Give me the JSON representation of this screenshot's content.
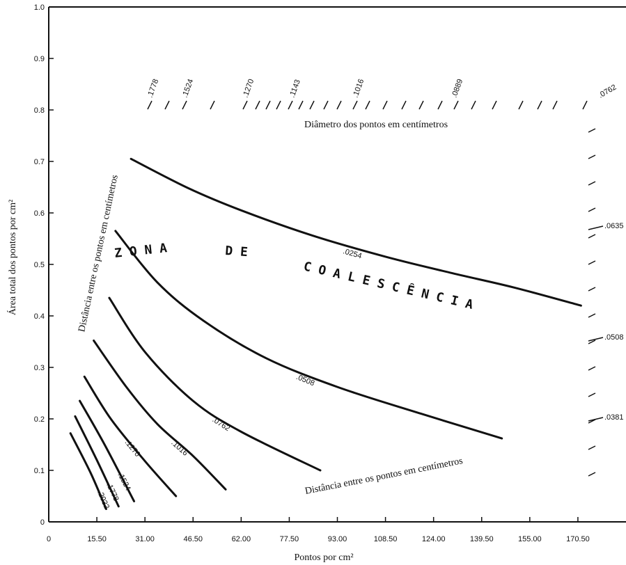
{
  "chart_data": {
    "type": "line",
    "title": "",
    "xlabel": "Pontos por cm²",
    "ylabel": "Área total dos pontos por cm²",
    "xlim": [
      0,
      186
    ],
    "ylim": [
      0,
      1.0
    ],
    "x_tick_labels": [
      "0",
      "15.50",
      "31.00",
      "46.50",
      "62.00",
      "77.50",
      "93.00",
      "108.50",
      "124.00",
      "139.50",
      "155.00",
      "170.50"
    ],
    "x_ticks": [
      0,
      15.5,
      31,
      46.5,
      62,
      77.5,
      93,
      108.5,
      124,
      139.5,
      155,
      170.5
    ],
    "y_tick_labels": [
      "0",
      "0.1",
      "0.2",
      "0.3",
      "0.4",
      "0.5",
      "0.6",
      "0.7",
      "0.8",
      "0.9",
      "1.0"
    ],
    "y_ticks": [
      0,
      0.1,
      0.2,
      0.3,
      0.4,
      0.5,
      0.6,
      0.7,
      0.8,
      0.9,
      1.0
    ],
    "grid": false,
    "series": [
      {
        "label": ".0254",
        "points": [
          [
            26.5,
            0.705
          ],
          [
            45,
            0.648
          ],
          [
            62,
            0.605
          ],
          [
            85,
            0.556
          ],
          [
            108.5,
            0.515
          ],
          [
            130,
            0.483
          ],
          [
            150,
            0.455
          ],
          [
            171.5,
            0.42
          ]
        ]
      },
      {
        "label": ".0508",
        "points": [
          [
            21.5,
            0.565
          ],
          [
            35,
            0.465
          ],
          [
            50,
            0.39
          ],
          [
            70,
            0.318
          ],
          [
            93,
            0.262
          ],
          [
            120,
            0.21
          ],
          [
            146,
            0.162
          ]
        ]
      },
      {
        "label": ".0762",
        "points": [
          [
            19.5,
            0.435
          ],
          [
            31,
            0.33
          ],
          [
            46.5,
            0.235
          ],
          [
            62,
            0.175
          ],
          [
            87.5,
            0.1
          ]
        ]
      },
      {
        "label": ".1016",
        "points": [
          [
            14.5,
            0.352
          ],
          [
            25,
            0.262
          ],
          [
            35,
            0.19
          ],
          [
            46.5,
            0.128
          ],
          [
            57,
            0.063
          ]
        ]
      },
      {
        "label": ".1270",
        "points": [
          [
            11.5,
            0.282
          ],
          [
            20,
            0.2
          ],
          [
            31,
            0.118
          ],
          [
            41,
            0.05
          ]
        ]
      },
      {
        "label": ".1524",
        "points": [
          [
            10,
            0.235
          ],
          [
            18,
            0.15
          ],
          [
            27.5,
            0.04
          ]
        ]
      },
      {
        "label": ".1778",
        "points": [
          [
            8.5,
            0.205
          ],
          [
            15.5,
            0.12
          ],
          [
            22.5,
            0.03
          ]
        ]
      },
      {
        "label": ".2032",
        "points": [
          [
            7,
            0.172
          ],
          [
            13.5,
            0.095
          ],
          [
            18.5,
            0.025
          ]
        ]
      }
    ],
    "top_scale_labels": [
      ".1778",
      ".1524",
      ".1270",
      ".1143",
      ".1016",
      ".0889",
      ".0762"
    ],
    "top_scale_caption": "Diâmetro dos pontos em centímetros",
    "right_scale_labels": [
      ".0635",
      ".0508",
      ".0381"
    ],
    "left_diagonal_caption": "Distância entre os pontos em centímetros",
    "bottom_diagonal_caption": "Distância entre os pontos em centímetros",
    "zone_text": [
      "Z O N A",
      "D E",
      "C O A L E S C Ê N C I A"
    ]
  }
}
